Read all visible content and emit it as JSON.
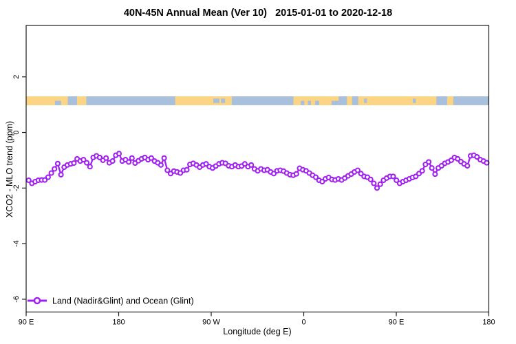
{
  "figure": {
    "title": "40N-45N Annual Mean (Ver 10)   2015-01-01 to 2020-12-18"
  },
  "chart_data": {
    "type": "line",
    "title": "40N-45N Annual Mean (Ver 10)   2015-01-01 to 2020-12-18",
    "xlabel": "Longitude (deg E)",
    "ylabel": "XCO2 - MLO trend (ppm)",
    "xlim": [
      90,
      540
    ],
    "ylim": [
      -6.46,
      3.85
    ],
    "grid": false,
    "x_ticks": [
      {
        "value": 90,
        "label": "90 E"
      },
      {
        "value": 180,
        "label": "180"
      },
      {
        "value": 270,
        "label": "90 W"
      },
      {
        "value": 360,
        "label": "0"
      },
      {
        "value": 450,
        "label": "90 E"
      },
      {
        "value": 540,
        "label": "180"
      }
    ],
    "y_ticks": [
      {
        "value": 2,
        "label": "2"
      },
      {
        "value": 0,
        "label": "0"
      },
      {
        "value": -2,
        "label": "-2"
      },
      {
        "value": -4,
        "label": "-4"
      },
      {
        "value": -6,
        "label": "-6"
      }
    ],
    "legend": {
      "position": "bottom-left",
      "entries": [
        {
          "label": "Land (Nadir&Glint) and Ocean (Glint)",
          "color": "#A020F0",
          "marker": "open-circle"
        }
      ]
    },
    "series": [
      {
        "name": "Land (Nadir&Glint) and Ocean (Glint)",
        "color": "#A020F0",
        "marker": "open-circle",
        "marker_fill": "#FFFFFF",
        "x_start": 92.5,
        "x_step": 3.137,
        "values": [
          -1.72,
          -1.83,
          -1.77,
          -1.72,
          -1.71,
          -1.71,
          -1.61,
          -1.46,
          -1.31,
          -1.12,
          -1.52,
          -1.25,
          -1.17,
          -1.13,
          -1.1,
          -0.95,
          -1.03,
          -0.98,
          -1.09,
          -1.23,
          -0.9,
          -0.84,
          -0.9,
          -1.0,
          -0.92,
          -1.09,
          -1.03,
          -0.82,
          -0.76,
          -1.03,
          -0.98,
          -1.06,
          -0.92,
          -1.1,
          -1.02,
          -0.95,
          -0.9,
          -0.98,
          -0.92,
          -1.03,
          -1.09,
          -1.17,
          -0.92,
          -1.36,
          -1.48,
          -1.39,
          -1.42,
          -1.46,
          -1.36,
          -1.34,
          -1.15,
          -1.11,
          -1.17,
          -1.25,
          -1.17,
          -1.13,
          -1.23,
          -1.28,
          -1.21,
          -1.13,
          -1.09,
          -1.11,
          -1.2,
          -1.23,
          -1.17,
          -1.23,
          -1.21,
          -1.13,
          -1.23,
          -1.17,
          -1.31,
          -1.38,
          -1.31,
          -1.36,
          -1.34,
          -1.42,
          -1.48,
          -1.38,
          -1.36,
          -1.39,
          -1.46,
          -1.52,
          -1.54,
          -1.49,
          -1.29,
          -1.34,
          -1.38,
          -1.46,
          -1.54,
          -1.61,
          -1.72,
          -1.77,
          -1.67,
          -1.62,
          -1.69,
          -1.71,
          -1.67,
          -1.71,
          -1.64,
          -1.56,
          -1.5,
          -1.42,
          -1.36,
          -1.48,
          -1.58,
          -1.61,
          -1.69,
          -1.83,
          -2.0,
          -1.86,
          -1.72,
          -1.64,
          -1.58,
          -1.58,
          -1.72,
          -1.83,
          -1.77,
          -1.72,
          -1.67,
          -1.62,
          -1.58,
          -1.48,
          -1.38,
          -1.15,
          -1.06,
          -1.28,
          -1.5,
          -1.28,
          -1.2,
          -1.11,
          -1.06,
          -1.0,
          -0.9,
          -0.95,
          -1.05,
          -1.13,
          -1.2,
          -0.84,
          -0.82,
          -0.88,
          -0.98,
          -1.03,
          -1.09
        ]
      }
    ],
    "coast_band": {
      "description": "land-ocean strip map along 40N-45N",
      "y_range": [
        0.98,
        1.3
      ],
      "ocean_color": "#A9C0DC",
      "land_color": "#FBD583",
      "land_segments": [
        [
          90,
          130.5
        ],
        [
          139.5,
          148.5
        ],
        [
          235,
          290
        ],
        [
          350,
          394
        ],
        [
          402,
          407
        ],
        [
          413,
          489
        ],
        [
          499.5,
          505.5
        ]
      ],
      "ocean_inlets": [
        {
          "range": [
            118,
            124
          ],
          "pos": "bottom"
        },
        {
          "range": [
            272,
            278
          ],
          "pos": "middle"
        },
        {
          "range": [
            279.5,
            283.5
          ],
          "pos": "middle"
        },
        {
          "range": [
            357,
            360.5
          ],
          "pos": "bottom"
        },
        {
          "range": [
            364,
            367
          ],
          "pos": "bottom"
        },
        {
          "range": [
            371,
            375
          ],
          "pos": "bottom"
        },
        {
          "range": [
            387,
            394
          ],
          "pos": "bottom"
        },
        {
          "range": [
            418.5,
            421.5
          ],
          "pos": "middle"
        },
        {
          "range": [
            466,
            469
          ],
          "pos": "middle"
        }
      ]
    }
  }
}
